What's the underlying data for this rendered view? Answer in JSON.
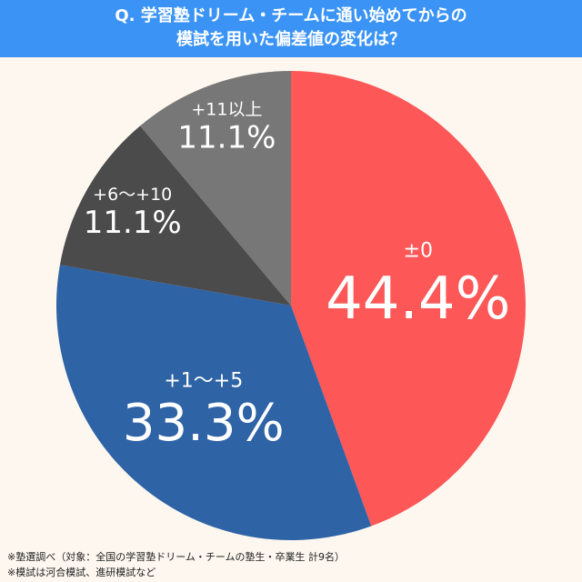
{
  "chart_data": {
    "type": "pie",
    "title_lines": [
      "Q. 学習塾ドリーム・チームに通い始めてからの",
      "模試を用いた偏差値の変化は？"
    ],
    "slices": [
      {
        "label": "±0",
        "value": 44.4,
        "value_label": "44.4%",
        "color": "#fd5757"
      },
      {
        "label": "+1〜+5",
        "value": 33.3,
        "value_label": "33.3%",
        "color": "#2e63a6"
      },
      {
        "label": "+6〜+10",
        "value": 11.1,
        "value_label": "11.1%",
        "color": "#4b4b4b"
      },
      {
        "label": "+11以上",
        "value": 11.1,
        "value_label": "11.1%",
        "color": "#777777"
      }
    ],
    "start": "top",
    "direction": "clockwise"
  },
  "footnotes": [
    "※塾選調べ（対象：全国の学習塾ドリーム・チームの塾生・卒業生 計9名）",
    "※模試は河合模試、進研模試など"
  ],
  "colors": {
    "title_bar": "#3b94f5",
    "background": "#fdf7ef"
  }
}
